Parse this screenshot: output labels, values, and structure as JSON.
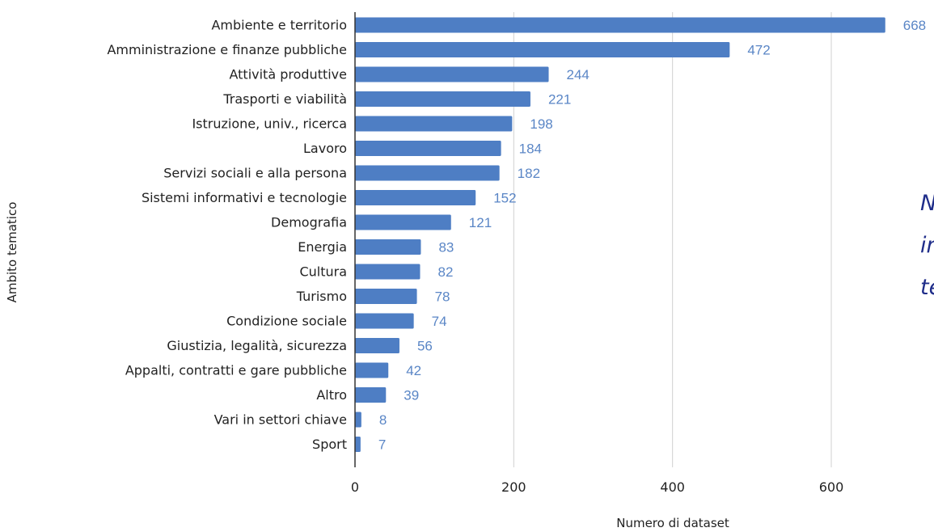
{
  "chart_data": {
    "type": "bar",
    "orientation": "horizontal",
    "categories": [
      "Ambiente e territorio",
      "Amministrazione e finanze pubbliche",
      "Attività produttive",
      "Trasporti e viabilità",
      "Istruzione, univ., ricerca",
      "Lavoro",
      "Servizi sociali e alla persona",
      "Sistemi informativi e tecnologie",
      "Demografia",
      "Energia",
      "Cultura",
      "Turismo",
      "Condizione sociale",
      "Giustizia, legalità, sicurezza",
      "Appalti, contratti e gare pubbliche",
      "Altro",
      "Vari in settori chiave",
      "Sport"
    ],
    "values": [
      668,
      472,
      244,
      221,
      198,
      184,
      182,
      152,
      121,
      83,
      82,
      78,
      74,
      56,
      42,
      39,
      8,
      7
    ],
    "xlabel": "Numero di dataset",
    "ylabel": "Ambito tematico",
    "xlim": [
      0,
      700
    ],
    "xticks": [
      0,
      200,
      400,
      600
    ],
    "xtick_labels": [
      "0",
      "200",
      "400",
      "600"
    ],
    "grid": "vertical",
    "data_labels": true,
    "colors": {
      "bar": "#4e7ec4",
      "value_label": "#5a86c6",
      "grid": "#d0d0d0",
      "axis": "#333333",
      "text": "#222222"
    }
  },
  "side_text": {
    "lines": [
      "N",
      "in",
      "te"
    ],
    "color": "#1f2d8a"
  }
}
